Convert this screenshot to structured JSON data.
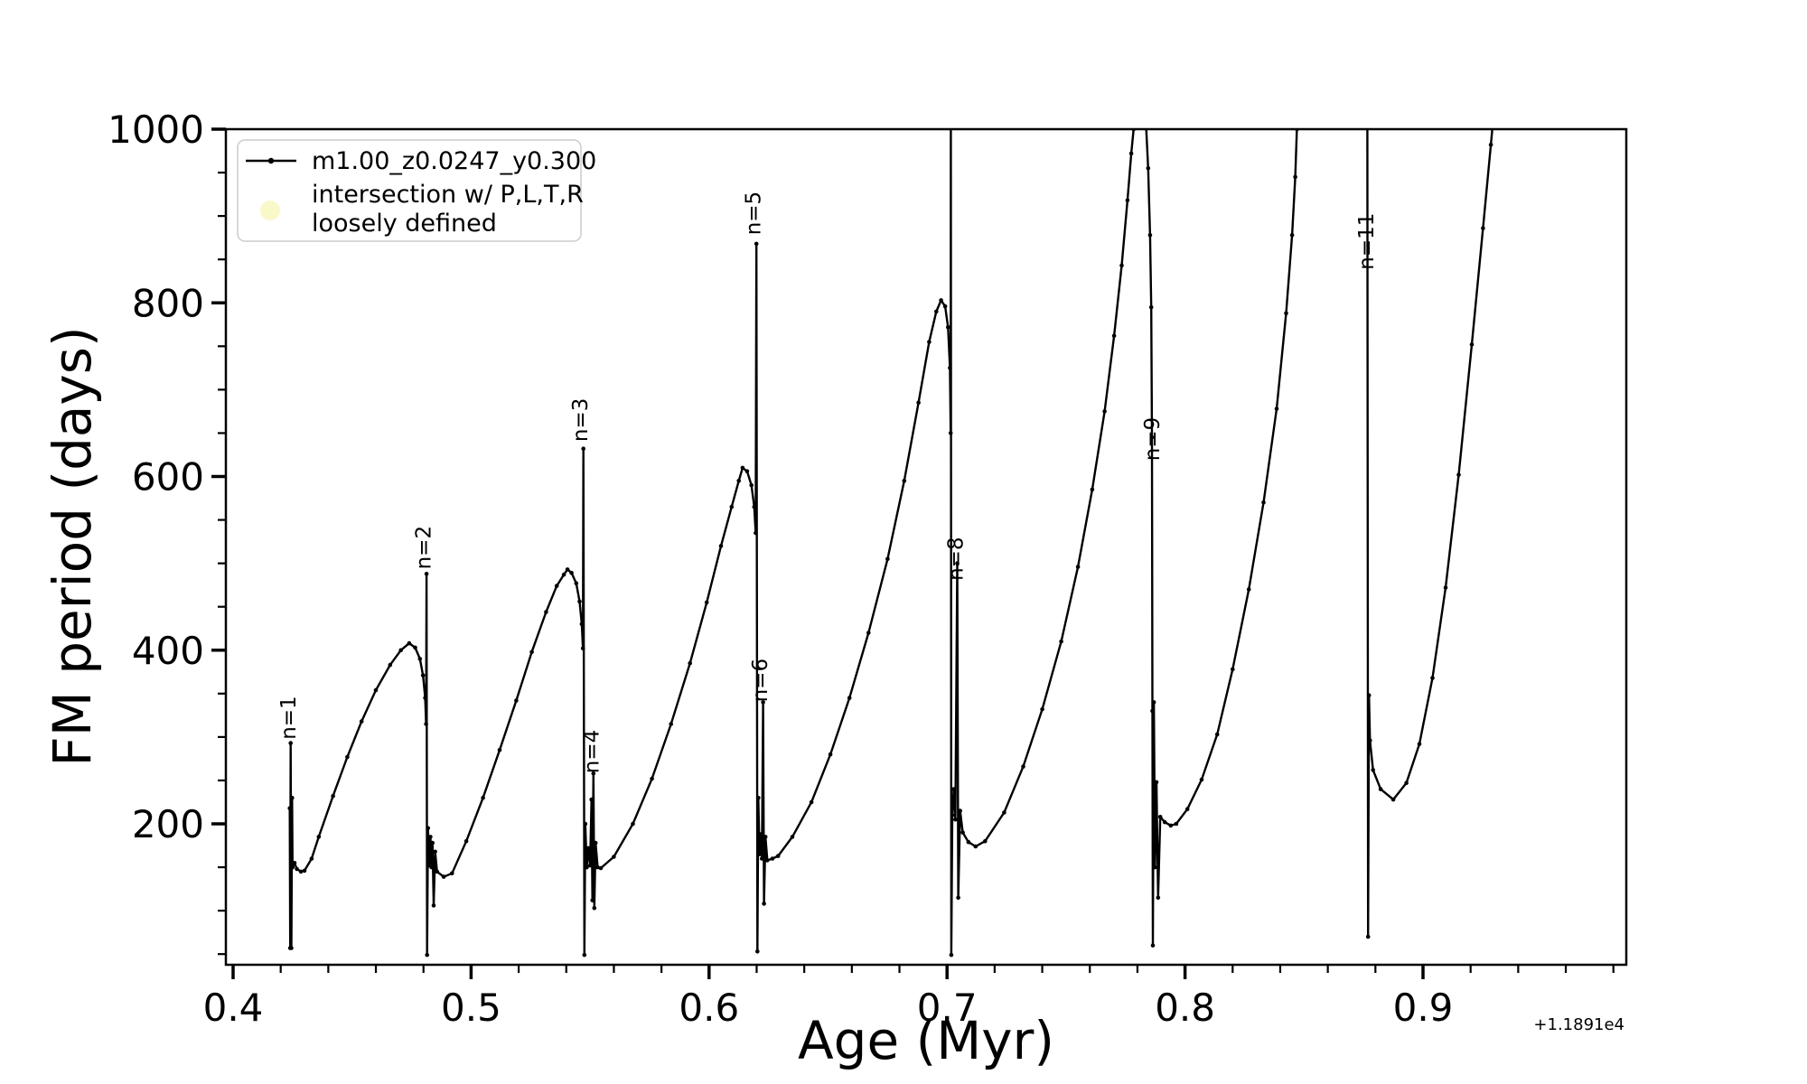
{
  "figure": {
    "background": "#ffffff",
    "line_color": "#000000"
  },
  "axes": {
    "xlabel": "Age (Myr)",
    "ylabel": "FM period (days)",
    "offset_text": "+1.1891e4",
    "xlim": [
      0.397,
      0.9854
    ],
    "ylim": [
      38,
      1000
    ],
    "x_major_ticks": [
      {
        "v": 0.4,
        "label": "0.4"
      },
      {
        "v": 0.5,
        "label": "0.5"
      },
      {
        "v": 0.6,
        "label": "0.6"
      },
      {
        "v": 0.7,
        "label": "0.7"
      },
      {
        "v": 0.8,
        "label": "0.8"
      },
      {
        "v": 0.9,
        "label": "0.9"
      }
    ],
    "x_minor_ticks": [
      0.42,
      0.44,
      0.46,
      0.48,
      0.52,
      0.54,
      0.56,
      0.58,
      0.62,
      0.64,
      0.66,
      0.68,
      0.72,
      0.74,
      0.76,
      0.78,
      0.82,
      0.84,
      0.86,
      0.88,
      0.92,
      0.94,
      0.96,
      0.98
    ],
    "y_major_ticks": [
      {
        "v": 200,
        "label": "200"
      },
      {
        "v": 400,
        "label": "400"
      },
      {
        "v": 600,
        "label": "600"
      },
      {
        "v": 800,
        "label": "800"
      },
      {
        "v": 1000,
        "label": "1000"
      }
    ],
    "y_minor_ticks": [
      50,
      100,
      150,
      250,
      300,
      350,
      450,
      500,
      550,
      650,
      700,
      750,
      850,
      900,
      950
    ],
    "grid": "off"
  },
  "legend": {
    "position": "upper-left",
    "entry1_label": "m1.00_z0.0247_y0.300",
    "entry2_label_line1": "intersection w/ P,L,T,R",
    "entry2_label_line2": "loosely defined",
    "entry1_marker": "line-with-dot",
    "entry2_marker": "circle",
    "entry2_color": "#f7f7c0"
  },
  "chart_data": {
    "type": "line",
    "title": "",
    "xlabel": "Age (Myr)",
    "ylabel": "FM period (days)",
    "x_offset": "+1.1891e4",
    "xlim": [
      0.397,
      0.9854
    ],
    "ylim": [
      38,
      1000
    ],
    "legend_position": "upper left",
    "series": [
      {
        "name": "m1.00_z0.0247_y0.300",
        "color": "#000000",
        "points": [
          [
            0.4238,
            218
          ],
          [
            0.424,
            57
          ],
          [
            0.4242,
            293
          ],
          [
            0.4245,
            57
          ],
          [
            0.4248,
            230
          ],
          [
            0.425,
            150
          ],
          [
            0.4258,
            155
          ],
          [
            0.4268,
            148
          ],
          [
            0.4285,
            145
          ],
          [
            0.43,
            146
          ],
          [
            0.433,
            160
          ],
          [
            0.436,
            185
          ],
          [
            0.442,
            232
          ],
          [
            0.448,
            277
          ],
          [
            0.454,
            318
          ],
          [
            0.46,
            354
          ],
          [
            0.466,
            383
          ],
          [
            0.4705,
            400
          ],
          [
            0.474,
            408
          ],
          [
            0.4765,
            403
          ],
          [
            0.4785,
            390
          ],
          [
            0.4798,
            371
          ],
          [
            0.4807,
            345
          ],
          [
            0.4811,
            315
          ],
          [
            0.4813,
            488
          ],
          [
            0.4815,
            49
          ],
          [
            0.4819,
            195
          ],
          [
            0.4824,
            152
          ],
          [
            0.4829,
            185
          ],
          [
            0.4834,
            150
          ],
          [
            0.4838,
            178
          ],
          [
            0.4843,
            106
          ],
          [
            0.4849,
            168
          ],
          [
            0.4857,
            145
          ],
          [
            0.4885,
            139
          ],
          [
            0.492,
            143
          ],
          [
            0.498,
            180
          ],
          [
            0.505,
            230
          ],
          [
            0.512,
            285
          ],
          [
            0.519,
            342
          ],
          [
            0.5255,
            398
          ],
          [
            0.5315,
            444
          ],
          [
            0.536,
            474
          ],
          [
            0.539,
            487
          ],
          [
            0.5405,
            493
          ],
          [
            0.5422,
            489
          ],
          [
            0.5442,
            477
          ],
          [
            0.5456,
            456
          ],
          [
            0.5465,
            430
          ],
          [
            0.547,
            402
          ],
          [
            0.5472,
            632
          ],
          [
            0.5476,
            49
          ],
          [
            0.548,
            200
          ],
          [
            0.5486,
            150
          ],
          [
            0.5493,
            172
          ],
          [
            0.55,
            152
          ],
          [
            0.5506,
            228
          ],
          [
            0.551,
            112
          ],
          [
            0.5514,
            258
          ],
          [
            0.5518,
            103
          ],
          [
            0.5523,
            178
          ],
          [
            0.5532,
            150
          ],
          [
            0.5545,
            149
          ],
          [
            0.56,
            162
          ],
          [
            0.568,
            200
          ],
          [
            0.576,
            252
          ],
          [
            0.584,
            315
          ],
          [
            0.592,
            385
          ],
          [
            0.599,
            455
          ],
          [
            0.605,
            520
          ],
          [
            0.6095,
            565
          ],
          [
            0.6125,
            595
          ],
          [
            0.6141,
            610
          ],
          [
            0.616,
            606
          ],
          [
            0.6178,
            590
          ],
          [
            0.619,
            565
          ],
          [
            0.6196,
            535
          ],
          [
            0.6199,
            868
          ],
          [
            0.6203,
            53
          ],
          [
            0.6207,
            230
          ],
          [
            0.6212,
            165
          ],
          [
            0.6217,
            188
          ],
          [
            0.6222,
            160
          ],
          [
            0.6227,
            340
          ],
          [
            0.6231,
            108
          ],
          [
            0.6237,
            185
          ],
          [
            0.6245,
            158
          ],
          [
            0.6266,
            160
          ],
          [
            0.629,
            163
          ],
          [
            0.635,
            185
          ],
          [
            0.643,
            225
          ],
          [
            0.651,
            280
          ],
          [
            0.659,
            345
          ],
          [
            0.667,
            420
          ],
          [
            0.675,
            505
          ],
          [
            0.682,
            595
          ],
          [
            0.688,
            685
          ],
          [
            0.6925,
            755
          ],
          [
            0.6955,
            790
          ],
          [
            0.6975,
            803
          ],
          [
            0.6992,
            796
          ],
          [
            0.7004,
            772
          ],
          [
            0.7012,
            725
          ],
          [
            0.7015,
            650
          ],
          [
            0.7016,
            1005
          ],
          [
            0.7018,
            49
          ],
          [
            0.7022,
            210
          ],
          [
            0.7028,
            240
          ],
          [
            0.7035,
            205
          ],
          [
            0.7043,
            500
          ],
          [
            0.7047,
            115
          ],
          [
            0.7055,
            215
          ],
          [
            0.7066,
            190
          ],
          [
            0.709,
            179
          ],
          [
            0.712,
            174
          ],
          [
            0.716,
            180
          ],
          [
            0.724,
            213
          ],
          [
            0.732,
            266
          ],
          [
            0.74,
            332
          ],
          [
            0.748,
            410
          ],
          [
            0.755,
            496
          ],
          [
            0.761,
            585
          ],
          [
            0.7662,
            675
          ],
          [
            0.7702,
            762
          ],
          [
            0.7734,
            843
          ],
          [
            0.7758,
            918
          ],
          [
            0.7774,
            972
          ],
          [
            0.7784,
            1000
          ],
          [
            0.78,
            1035
          ],
          [
            0.783,
            1040
          ],
          [
            0.7845,
            955
          ],
          [
            0.7853,
            878
          ],
          [
            0.7858,
            795
          ],
          [
            0.7861,
            645
          ],
          [
            0.7863,
            330
          ],
          [
            0.7865,
            60
          ],
          [
            0.7869,
            340
          ],
          [
            0.7874,
            150
          ],
          [
            0.788,
            248
          ],
          [
            0.7887,
            115
          ],
          [
            0.7896,
            208
          ],
          [
            0.7915,
            202
          ],
          [
            0.794,
            198
          ],
          [
            0.7963,
            200
          ],
          [
            0.801,
            217
          ],
          [
            0.807,
            251
          ],
          [
            0.8135,
            303
          ],
          [
            0.82,
            378
          ],
          [
            0.8268,
            470
          ],
          [
            0.833,
            570
          ],
          [
            0.8385,
            678
          ],
          [
            0.8425,
            788
          ],
          [
            0.845,
            878
          ],
          [
            0.8463,
            945
          ],
          [
            0.847,
            1000
          ],
          [
            0.849,
            1055
          ],
          [
            0.857,
            1072
          ],
          [
            0.868,
            1072
          ],
          [
            0.875,
            1018
          ],
          [
            0.8766,
            1003
          ],
          [
            0.8769,
            70
          ],
          [
            0.8773,
            348
          ],
          [
            0.8777,
            296
          ],
          [
            0.879,
            262
          ],
          [
            0.8822,
            240
          ],
          [
            0.8875,
            228
          ],
          [
            0.893,
            247
          ],
          [
            0.8985,
            292
          ],
          [
            0.904,
            368
          ],
          [
            0.9095,
            472
          ],
          [
            0.915,
            602
          ],
          [
            0.9205,
            752
          ],
          [
            0.9252,
            886
          ],
          [
            0.9285,
            982
          ],
          [
            0.9307,
            1048
          ]
        ]
      }
    ],
    "annotations": [
      {
        "text": "n=1",
        "x": 0.4262,
        "y": 297
      },
      {
        "text": "n=2",
        "x": 0.483,
        "y": 493
      },
      {
        "text": "n=3",
        "x": 0.5488,
        "y": 640
      },
      {
        "text": "n=4",
        "x": 0.5535,
        "y": 258
      },
      {
        "text": "n=5",
        "x": 0.6215,
        "y": 878
      },
      {
        "text": "n=6",
        "x": 0.6243,
        "y": 340
      },
      {
        "text": "n=8",
        "x": 0.7066,
        "y": 480
      },
      {
        "text": "n=9",
        "x": 0.7892,
        "y": 618
      },
      {
        "text": "n=11",
        "x": 0.8792,
        "y": 838
      }
    ]
  }
}
